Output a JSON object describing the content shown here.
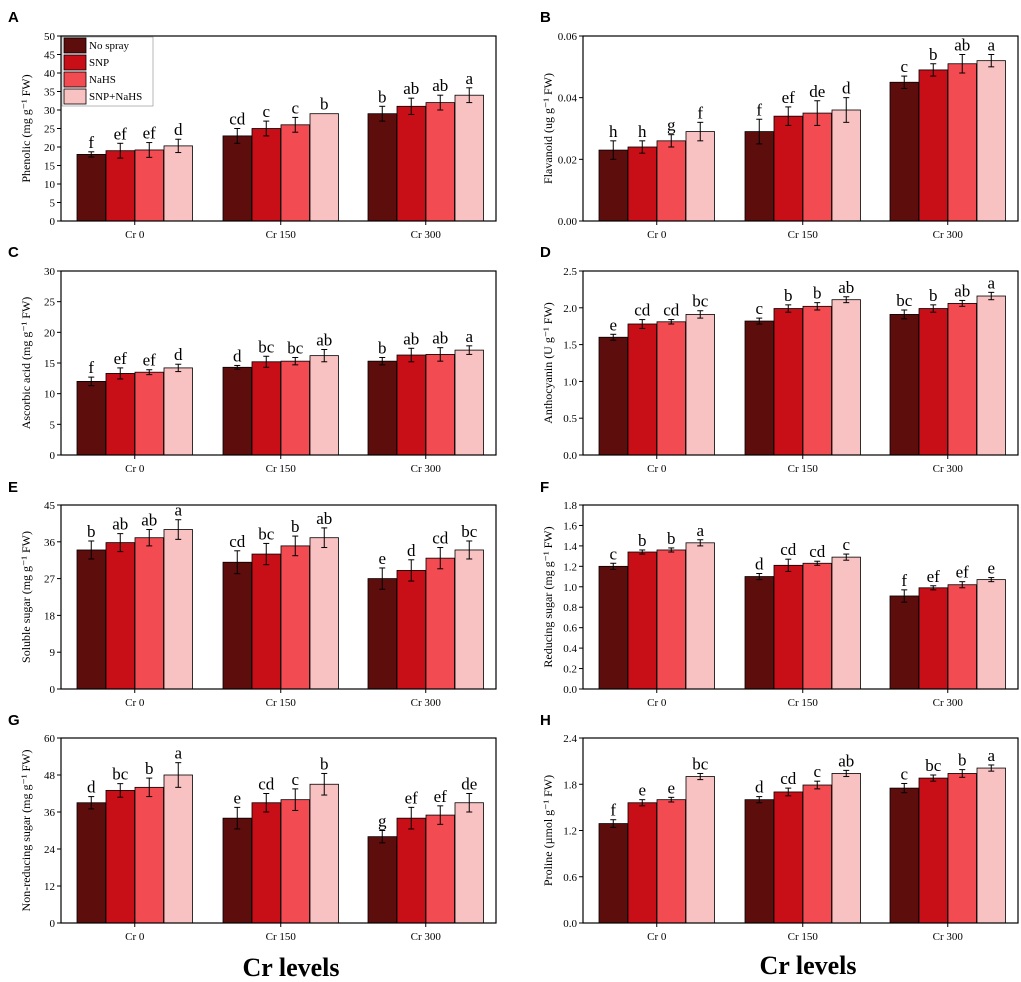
{
  "colors": [
    "#5e0d0d",
    "#c80f17",
    "#f24b52",
    "#f9c2c2"
  ],
  "legend": [
    "No spray",
    "SNP",
    "NaHS",
    "SNP+NaHS"
  ],
  "categories": [
    "Cr 0",
    "Cr 150",
    "Cr 300"
  ],
  "x_axis_title": "Cr levels",
  "chart_data": [
    {
      "panel": "A",
      "type": "bar",
      "ylabel": "Phenolic (mg g⁻¹ FW)",
      "ylim": [
        0,
        50
      ],
      "yticks": [
        "0",
        "5",
        "10",
        "15",
        "20",
        "25",
        "30",
        "35",
        "40",
        "45",
        "50"
      ],
      "series": [
        {
          "name": "No spray",
          "values": [
            18,
            23,
            29
          ],
          "errors": [
            0.7,
            2,
            2
          ],
          "labels": [
            "f",
            "cd",
            "b"
          ]
        },
        {
          "name": "SNP",
          "values": [
            19,
            25,
            31
          ],
          "errors": [
            2,
            2,
            2.2
          ],
          "labels": [
            "ef",
            "c",
            "ab"
          ]
        },
        {
          "name": "NaHS",
          "values": [
            19.2,
            26,
            32
          ],
          "errors": [
            2,
            2,
            2
          ],
          "labels": [
            "ef",
            "c",
            "ab"
          ]
        },
        {
          "name": "SNP+NaHS",
          "values": [
            20.3,
            29,
            34
          ],
          "errors": [
            1.8,
            0,
            2
          ],
          "labels": [
            "d",
            "b",
            "a"
          ]
        }
      ]
    },
    {
      "panel": "B",
      "type": "bar",
      "ylabel": "Flavanoid (ug g⁻¹ FW)",
      "ylim": [
        0,
        0.06
      ],
      "yticks": [
        "0.00",
        "0.02",
        "0.04",
        "0.06"
      ],
      "series": [
        {
          "name": "No spray",
          "values": [
            0.023,
            0.029,
            0.045
          ],
          "errors": [
            0.003,
            0.004,
            0.002
          ],
          "labels": [
            "h",
            "f",
            "c"
          ]
        },
        {
          "name": "SNP",
          "values": [
            0.024,
            0.034,
            0.049
          ],
          "errors": [
            0.002,
            0.003,
            0.002
          ],
          "labels": [
            "h",
            "ef",
            "b"
          ]
        },
        {
          "name": "NaHS",
          "values": [
            0.026,
            0.035,
            0.051
          ],
          "errors": [
            0.002,
            0.004,
            0.003
          ],
          "labels": [
            "g",
            "de",
            "ab"
          ]
        },
        {
          "name": "SNP+NaHS",
          "values": [
            0.029,
            0.036,
            0.052
          ],
          "errors": [
            0.003,
            0.004,
            0.002
          ],
          "labels": [
            "f",
            "d",
            "a"
          ]
        }
      ]
    },
    {
      "panel": "C",
      "type": "bar",
      "ylabel": "Ascorbic acid (mg g⁻¹ FW)",
      "ylim": [
        0,
        30
      ],
      "yticks": [
        "0",
        "5",
        "10",
        "15",
        "20",
        "25",
        "30"
      ],
      "series": [
        {
          "name": "No spray",
          "values": [
            12,
            14.3,
            15.3
          ],
          "errors": [
            0.7,
            0.3,
            0.6
          ],
          "labels": [
            "f",
            "d",
            "b"
          ]
        },
        {
          "name": "SNP",
          "values": [
            13.3,
            15.2,
            16.3
          ],
          "errors": [
            0.9,
            0.9,
            1.1
          ],
          "labels": [
            "ef",
            "bc",
            "ab"
          ]
        },
        {
          "name": "NaHS",
          "values": [
            13.5,
            15.3,
            16.4
          ],
          "errors": [
            0.4,
            0.6,
            1.1
          ],
          "labels": [
            "ef",
            "bc",
            "ab"
          ]
        },
        {
          "name": "SNP+NaHS",
          "values": [
            14.2,
            16.2,
            17.1
          ],
          "errors": [
            0.6,
            1,
            0.7
          ],
          "labels": [
            "d",
            "ab",
            "a"
          ]
        }
      ]
    },
    {
      "panel": "D",
      "type": "bar",
      "ylabel": "Anthocyanin (U g⁻¹ FW)",
      "ylim": [
        0,
        2.5
      ],
      "yticks": [
        "0.0",
        "0.5",
        "1.0",
        "1.5",
        "2.0",
        "2.5"
      ],
      "series": [
        {
          "name": "No spray",
          "values": [
            1.6,
            1.82,
            1.91
          ],
          "errors": [
            0.04,
            0.04,
            0.06
          ],
          "labels": [
            "e",
            "c",
            "bc"
          ]
        },
        {
          "name": "SNP",
          "values": [
            1.78,
            1.99,
            1.99
          ],
          "errors": [
            0.06,
            0.05,
            0.05
          ],
          "labels": [
            "cd",
            "b",
            "b"
          ]
        },
        {
          "name": "NaHS",
          "values": [
            1.81,
            2.02,
            2.06
          ],
          "errors": [
            0.03,
            0.05,
            0.04
          ],
          "labels": [
            "cd",
            "b",
            "ab"
          ]
        },
        {
          "name": "SNP+NaHS",
          "values": [
            1.91,
            2.11,
            2.16
          ],
          "errors": [
            0.05,
            0.04,
            0.05
          ],
          "labels": [
            "bc",
            "ab",
            "a"
          ]
        }
      ]
    },
    {
      "panel": "E",
      "type": "bar",
      "ylabel": "Soluble sugar (mg g⁻¹ FW)",
      "ylim": [
        0,
        45
      ],
      "yticks": [
        "0",
        "9",
        "18",
        "27",
        "36",
        "45"
      ],
      "series": [
        {
          "name": "No spray",
          "values": [
            34,
            31,
            27
          ],
          "errors": [
            2.2,
            2.8,
            2.6
          ],
          "labels": [
            "b",
            "cd",
            "e"
          ]
        },
        {
          "name": "SNP",
          "values": [
            35.8,
            33,
            29
          ],
          "errors": [
            2.2,
            2.6,
            2.6
          ],
          "labels": [
            "ab",
            "bc",
            "d"
          ]
        },
        {
          "name": "NaHS",
          "values": [
            37,
            35,
            32
          ],
          "errors": [
            2,
            2.4,
            2.6
          ],
          "labels": [
            "ab",
            "b",
            "cd"
          ]
        },
        {
          "name": "SNP+NaHS",
          "values": [
            39,
            37,
            34
          ],
          "errors": [
            2.4,
            2.4,
            2.2
          ],
          "labels": [
            "a",
            "ab",
            "bc"
          ]
        }
      ]
    },
    {
      "panel": "F",
      "type": "bar",
      "ylabel": "Reducing sugar (mg g⁻¹ FW)",
      "ylim": [
        0,
        1.8
      ],
      "yticks": [
        "0.0",
        "0.2",
        "0.4",
        "0.6",
        "0.8",
        "1.0",
        "1.2",
        "1.4",
        "1.6",
        "1.8"
      ],
      "series": [
        {
          "name": "No spray",
          "values": [
            1.2,
            1.1,
            0.91
          ],
          "errors": [
            0.03,
            0.03,
            0.06
          ],
          "labels": [
            "c",
            "d",
            "f"
          ]
        },
        {
          "name": "SNP",
          "values": [
            1.34,
            1.21,
            0.99
          ],
          "errors": [
            0.02,
            0.06,
            0.02
          ],
          "labels": [
            "b",
            "cd",
            "ef"
          ]
        },
        {
          "name": "NaHS",
          "values": [
            1.36,
            1.23,
            1.02
          ],
          "errors": [
            0.02,
            0.02,
            0.03
          ],
          "labels": [
            "b",
            "cd",
            "ef"
          ]
        },
        {
          "name": "SNP+NaHS",
          "values": [
            1.43,
            1.29,
            1.07
          ],
          "errors": [
            0.03,
            0.03,
            0.02
          ],
          "labels": [
            "a",
            "c",
            "e"
          ]
        }
      ]
    },
    {
      "panel": "G",
      "type": "bar",
      "ylabel": "Non-reducing sugar (mg g⁻¹ FW)",
      "ylim": [
        0,
        60
      ],
      "yticks": [
        "0",
        "12",
        "24",
        "36",
        "48",
        "60"
      ],
      "series": [
        {
          "name": "No spray",
          "values": [
            39,
            34,
            28
          ],
          "errors": [
            2,
            3.5,
            2
          ],
          "labels": [
            "d",
            "e",
            "g"
          ]
        },
        {
          "name": "SNP",
          "values": [
            43,
            39,
            34
          ],
          "errors": [
            2.2,
            3,
            3.5
          ],
          "labels": [
            "bc",
            "cd",
            "ef"
          ]
        },
        {
          "name": "NaHS",
          "values": [
            44,
            40,
            35
          ],
          "errors": [
            3,
            3.5,
            3
          ],
          "labels": [
            "b",
            "c",
            "ef"
          ]
        },
        {
          "name": "SNP+NaHS",
          "values": [
            48,
            45,
            39
          ],
          "errors": [
            4,
            3.5,
            3
          ],
          "labels": [
            "a",
            "b",
            "de"
          ]
        }
      ]
    },
    {
      "panel": "H",
      "type": "bar",
      "ylabel": "Proline (µmol g⁻¹ FW)",
      "ylim": [
        0,
        2.4
      ],
      "yticks": [
        "0.0",
        "0.6",
        "1.2",
        "1.8",
        "2.4"
      ],
      "series": [
        {
          "name": "No spray",
          "values": [
            1.29,
            1.6,
            1.75
          ],
          "errors": [
            0.05,
            0.04,
            0.06
          ],
          "labels": [
            "f",
            "d",
            "c"
          ]
        },
        {
          "name": "SNP",
          "values": [
            1.56,
            1.7,
            1.88
          ],
          "errors": [
            0.04,
            0.05,
            0.04
          ],
          "labels": [
            "e",
            "cd",
            "bc"
          ]
        },
        {
          "name": "NaHS",
          "values": [
            1.6,
            1.79,
            1.94
          ],
          "errors": [
            0.03,
            0.05,
            0.05
          ],
          "labels": [
            "e",
            "c",
            "b"
          ]
        },
        {
          "name": "SNP+NaHS",
          "values": [
            1.9,
            1.94,
            2.01
          ],
          "errors": [
            0.04,
            0.04,
            0.04
          ],
          "labels": [
            "bc",
            "ab",
            "a"
          ]
        }
      ]
    }
  ]
}
